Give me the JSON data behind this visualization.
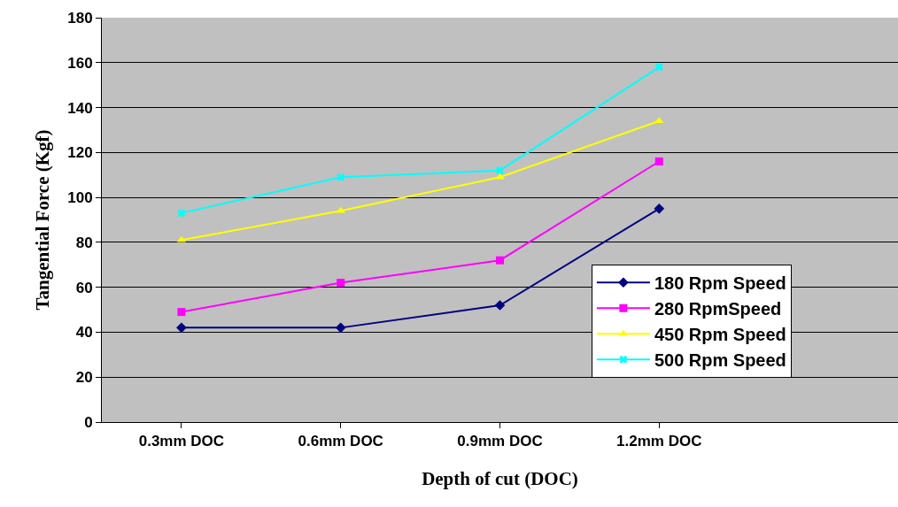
{
  "chart_data": {
    "type": "line",
    "xlabel": "Depth of cut (DOC)",
    "ylabel": "Tangential Force (Kgf)",
    "categories": [
      "0.3mm DOC",
      "0.6mm DOC",
      "0.9mm DOC",
      "1.2mm DOC",
      null
    ],
    "series": [
      {
        "name": "180 Rpm Speed",
        "color": "#000080",
        "marker": "diamond",
        "values": [
          42,
          42,
          52,
          95,
          null
        ]
      },
      {
        "name": "280 RpmSpeed",
        "color": "#ff00ff",
        "marker": "square",
        "values": [
          49,
          62,
          72,
          116,
          null
        ]
      },
      {
        "name": "450 Rpm Speed",
        "color": "#ffff00",
        "marker": "triangle",
        "values": [
          81,
          94,
          109,
          134,
          null
        ]
      },
      {
        "name": "500 Rpm Speed",
        "color": "#00ffff",
        "marker": "cross",
        "values": [
          93,
          109,
          112,
          158,
          null
        ]
      }
    ],
    "ylim": [
      0,
      180
    ],
    "yticks": [
      0,
      20,
      40,
      60,
      80,
      100,
      120,
      140,
      160,
      180
    ],
    "grid": "y",
    "legend": "bottom right",
    "line_style": "solid"
  }
}
